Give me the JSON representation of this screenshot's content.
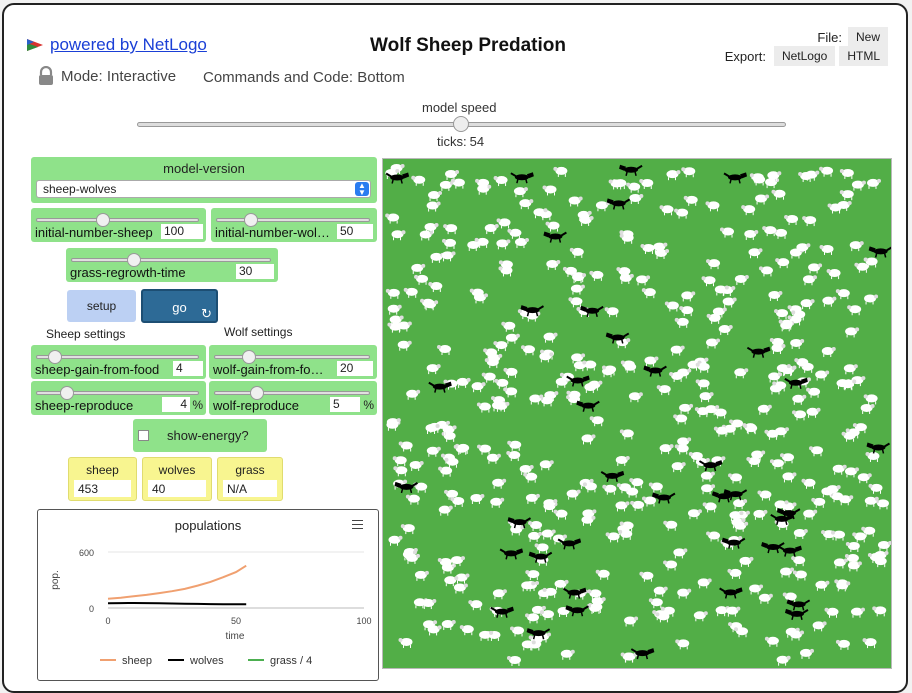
{
  "header": {
    "powered_by": "powered by NetLogo",
    "title": "Wolf Sheep Predation",
    "file_label": "File:",
    "file_new": "New",
    "export_label": "Export:",
    "export_netlogo": "NetLogo",
    "export_html": "HTML",
    "mode": "Mode: Interactive",
    "commands_code": "Commands and Code: Bottom"
  },
  "speed": {
    "label": "model speed",
    "ticks_label": "ticks:",
    "ticks_value": "54",
    "position": 0.5
  },
  "chooser": {
    "label": "model-version",
    "selected": "sheep-wolves"
  },
  "sliders": {
    "initial_number_sheep": {
      "label": "initial-number-sheep",
      "value": "100",
      "min": 0,
      "max": 250,
      "fraction": 0.4
    },
    "initial_number_wolves": {
      "label": "initial-number-wol…",
      "value": "50",
      "min": 0,
      "max": 250,
      "fraction": 0.2
    },
    "grass_regrowth_time": {
      "label": "grass-regrowth-time",
      "value": "30",
      "min": 0,
      "max": 100,
      "fraction": 0.3
    },
    "sheep_gain_from_food": {
      "label": "sheep-gain-from-food",
      "value": "4",
      "min": 0,
      "max": 50,
      "fraction": 0.08
    },
    "wolf_gain_from_food": {
      "label": "wolf-gain-from-fo…",
      "value": "20",
      "min": 0,
      "max": 100,
      "fraction": 0.2
    },
    "sheep_reproduce": {
      "label": "sheep-reproduce",
      "value": "4",
      "unit": "%",
      "min": 1,
      "max": 20,
      "fraction": 0.16
    },
    "wolf_reproduce": {
      "label": "wolf-reproduce",
      "value": "5",
      "unit": "%",
      "min": 0,
      "max": 20,
      "fraction": 0.25
    }
  },
  "buttons": {
    "setup": "setup",
    "go": "go",
    "go_forever_icon": "loop-arrow-icon"
  },
  "notes": {
    "sheep_settings": "Sheep settings",
    "wolf_settings": "Wolf settings"
  },
  "switch": {
    "label": "show-energy?",
    "checked": false
  },
  "monitors": [
    {
      "label": "sheep",
      "value": "453"
    },
    {
      "label": "wolves",
      "value": "40"
    },
    {
      "label": "grass",
      "value": "N/A"
    }
  ],
  "plot": {
    "title": "populations",
    "menu_icon": "hamburger-menu-icon"
  },
  "chart_data": {
    "type": "line",
    "title": "populations",
    "xlabel": "time",
    "ylabel": "pop.",
    "xlim": [
      0,
      100
    ],
    "ylim": [
      0,
      600
    ],
    "x_ticks": [
      "0",
      "50",
      "100"
    ],
    "y_ticks": [
      "0",
      "600"
    ],
    "legend_position": "bottom",
    "series": [
      {
        "name": "sheep",
        "color": "#f0a070",
        "points": [
          [
            0,
            100
          ],
          [
            5,
            110
          ],
          [
            10,
            125
          ],
          [
            15,
            140
          ],
          [
            20,
            160
          ],
          [
            25,
            180
          ],
          [
            30,
            205
          ],
          [
            35,
            240
          ],
          [
            40,
            280
          ],
          [
            45,
            330
          ],
          [
            50,
            385
          ],
          [
            54,
            453
          ]
        ]
      },
      {
        "name": "wolves",
        "color": "#000000",
        "points": [
          [
            0,
            50
          ],
          [
            5,
            52
          ],
          [
            10,
            54
          ],
          [
            15,
            52
          ],
          [
            20,
            50
          ],
          [
            25,
            48
          ],
          [
            30,
            46
          ],
          [
            35,
            44
          ],
          [
            40,
            42
          ],
          [
            45,
            41
          ],
          [
            50,
            40
          ],
          [
            54,
            40
          ]
        ]
      },
      {
        "name": "grass / 4",
        "color": "#4caf50",
        "points": []
      }
    ]
  },
  "world": {
    "background_color": "#52ae47",
    "sheep_color": "#ffffff",
    "wolf_color": "#000000",
    "sheep_count": 453,
    "wolf_count": 40
  }
}
